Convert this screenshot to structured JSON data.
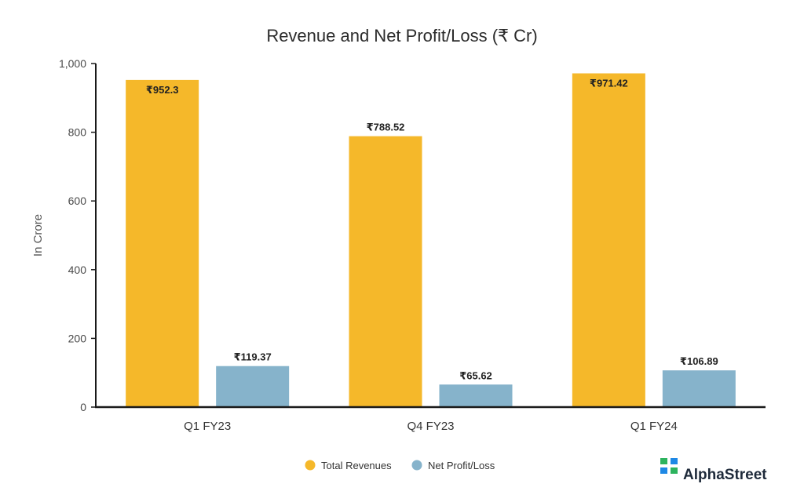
{
  "colors": {
    "revenue": "#F5B82A",
    "profit": "#86B3CB",
    "axis": "#1a1a1a",
    "brand_green": "#2DB35E",
    "brand_blue": "#1E88E5"
  },
  "brand": {
    "name": "AlphaStreet",
    "icon": "alphastreet-logo-icon"
  },
  "chart_data": {
    "type": "bar",
    "title": "Revenue and Net Profit/Loss (₹ Cr)",
    "xlabel": "",
    "ylabel": "In Crore",
    "ylim": [
      0,
      1000
    ],
    "yticks": [
      0,
      200,
      400,
      600,
      800,
      1000
    ],
    "ytick_labels": [
      "0",
      "200",
      "400",
      "600",
      "800",
      "1,000"
    ],
    "categories": [
      "Q1 FY23",
      "Q4 FY23",
      "Q1 FY24"
    ],
    "series": [
      {
        "name": "Total Revenues",
        "color": "#F5B82A",
        "values": [
          952.3,
          788.52,
          971.42
        ],
        "labels": [
          "₹952.3",
          "₹788.52",
          "₹971.42"
        ]
      },
      {
        "name": "Net Profit/Loss",
        "color": "#86B3CB",
        "values": [
          119.37,
          65.62,
          106.89
        ],
        "labels": [
          "₹119.37",
          "₹65.62",
          "₹106.89"
        ]
      }
    ],
    "legend_position": "bottom-center",
    "grid": false
  }
}
